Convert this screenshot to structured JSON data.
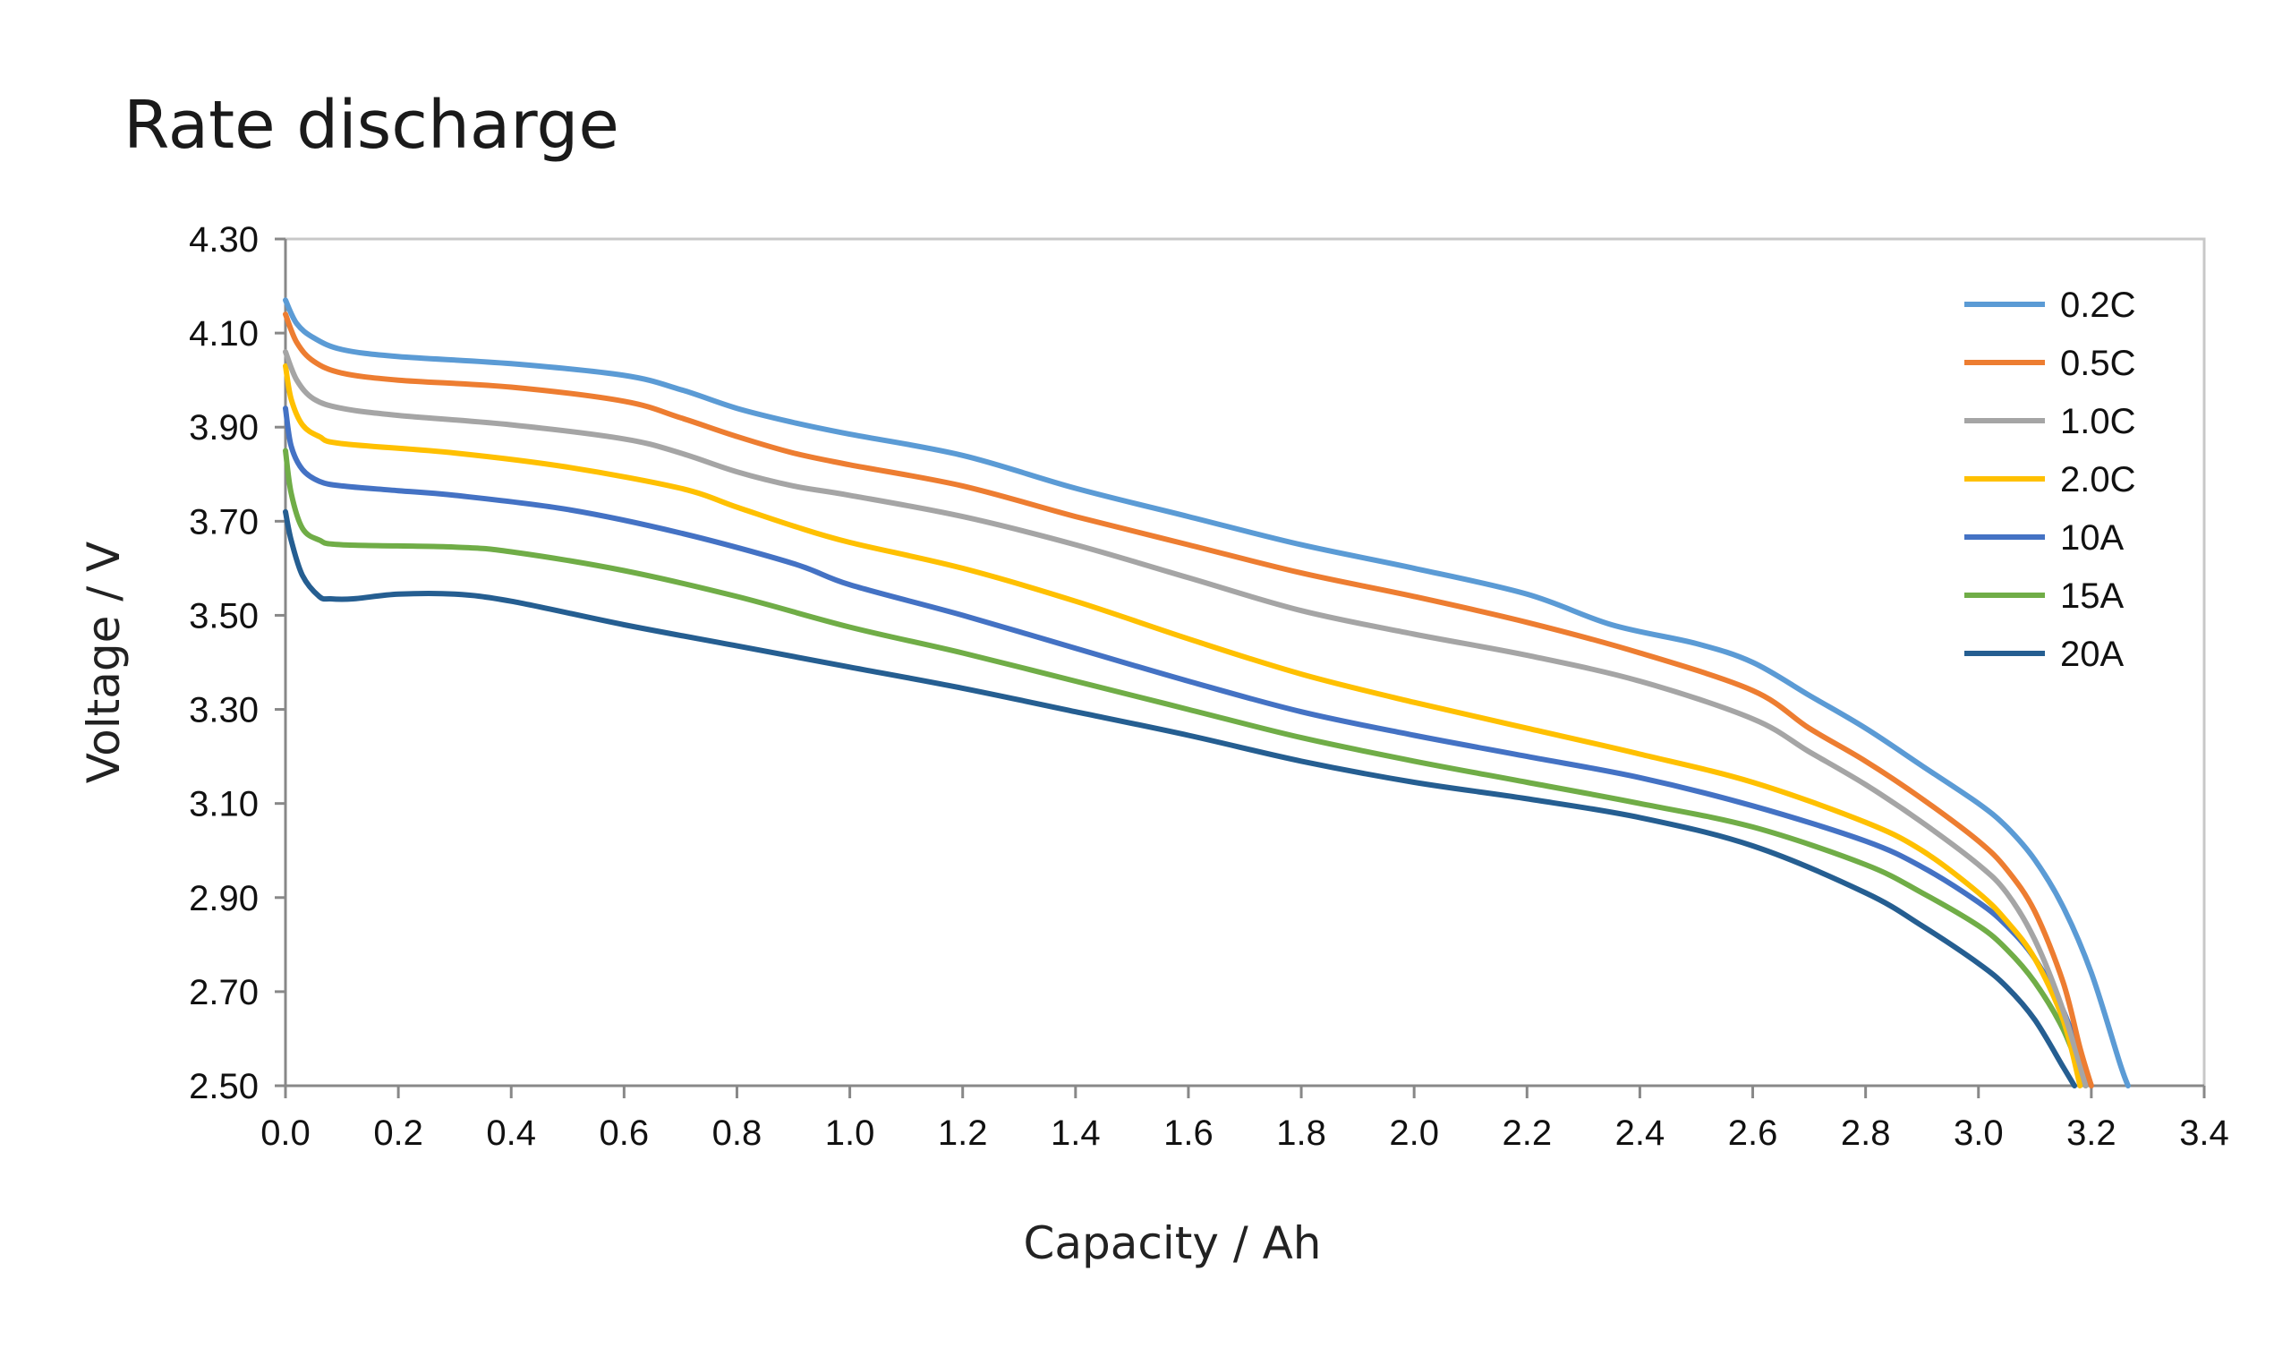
{
  "chart_data": {
    "type": "line",
    "title": "Rate discharge",
    "xlabel": "Capacity / Ah",
    "ylabel": "Voltage / V",
    "xlim": [
      0,
      3.4
    ],
    "ylim": [
      2.5,
      4.3
    ],
    "x_ticks": [
      "0.0",
      "0.2",
      "0.4",
      "0.6",
      "0.8",
      "1.0",
      "1.2",
      "1.4",
      "1.6",
      "1.8",
      "2.0",
      "2.2",
      "2.4",
      "2.6",
      "2.8",
      "3.0",
      "3.2",
      "3.4"
    ],
    "y_ticks": [
      "4.30",
      "4.10",
      "3.90",
      "3.70",
      "3.50",
      "3.30",
      "3.10",
      "2.90",
      "2.70",
      "2.50"
    ],
    "grid": false,
    "legend_position": "top-right",
    "series": [
      {
        "name": "0.2C",
        "color": "#5b9bd5",
        "points": [
          [
            0,
            4.17
          ],
          [
            0.02,
            4.12
          ],
          [
            0.05,
            4.09
          ],
          [
            0.1,
            4.065
          ],
          [
            0.2,
            4.05
          ],
          [
            0.4,
            4.035
          ],
          [
            0.6,
            4.01
          ],
          [
            0.7,
            3.98
          ],
          [
            0.8,
            3.94
          ],
          [
            0.9,
            3.91
          ],
          [
            1.0,
            3.885
          ],
          [
            1.2,
            3.84
          ],
          [
            1.4,
            3.77
          ],
          [
            1.6,
            3.71
          ],
          [
            1.8,
            3.65
          ],
          [
            2.0,
            3.6
          ],
          [
            2.2,
            3.545
          ],
          [
            2.35,
            3.48
          ],
          [
            2.5,
            3.44
          ],
          [
            2.6,
            3.4
          ],
          [
            2.7,
            3.33
          ],
          [
            2.8,
            3.26
          ],
          [
            2.9,
            3.18
          ],
          [
            3.0,
            3.1
          ],
          [
            3.05,
            3.05
          ],
          [
            3.1,
            2.98
          ],
          [
            3.15,
            2.88
          ],
          [
            3.2,
            2.74
          ],
          [
            3.25,
            2.55
          ],
          [
            3.265,
            2.5
          ]
        ]
      },
      {
        "name": "0.5C",
        "color": "#ed7d31",
        "points": [
          [
            0,
            4.14
          ],
          [
            0.02,
            4.08
          ],
          [
            0.05,
            4.04
          ],
          [
            0.1,
            4.015
          ],
          [
            0.2,
            4.0
          ],
          [
            0.4,
            3.985
          ],
          [
            0.6,
            3.955
          ],
          [
            0.7,
            3.92
          ],
          [
            0.8,
            3.88
          ],
          [
            0.9,
            3.845
          ],
          [
            1.0,
            3.82
          ],
          [
            1.2,
            3.775
          ],
          [
            1.4,
            3.71
          ],
          [
            1.6,
            3.65
          ],
          [
            1.8,
            3.59
          ],
          [
            2.0,
            3.54
          ],
          [
            2.2,
            3.485
          ],
          [
            2.4,
            3.42
          ],
          [
            2.6,
            3.34
          ],
          [
            2.7,
            3.26
          ],
          [
            2.8,
            3.19
          ],
          [
            2.9,
            3.11
          ],
          [
            3.0,
            3.02
          ],
          [
            3.05,
            2.96
          ],
          [
            3.1,
            2.87
          ],
          [
            3.15,
            2.72
          ],
          [
            3.18,
            2.58
          ],
          [
            3.2,
            2.5
          ]
        ]
      },
      {
        "name": "1.0C",
        "color": "#a5a5a5",
        "points": [
          [
            0,
            4.06
          ],
          [
            0.02,
            4.0
          ],
          [
            0.05,
            3.96
          ],
          [
            0.1,
            3.94
          ],
          [
            0.2,
            3.925
          ],
          [
            0.4,
            3.905
          ],
          [
            0.6,
            3.875
          ],
          [
            0.7,
            3.845
          ],
          [
            0.8,
            3.805
          ],
          [
            0.9,
            3.775
          ],
          [
            1.0,
            3.755
          ],
          [
            1.2,
            3.71
          ],
          [
            1.4,
            3.65
          ],
          [
            1.6,
            3.58
          ],
          [
            1.8,
            3.51
          ],
          [
            2.0,
            3.46
          ],
          [
            2.2,
            3.415
          ],
          [
            2.4,
            3.36
          ],
          [
            2.6,
            3.28
          ],
          [
            2.7,
            3.21
          ],
          [
            2.8,
            3.14
          ],
          [
            2.9,
            3.06
          ],
          [
            3.0,
            2.97
          ],
          [
            3.05,
            2.91
          ],
          [
            3.1,
            2.81
          ],
          [
            3.15,
            2.66
          ],
          [
            3.19,
            2.5
          ]
        ]
      },
      {
        "name": "2.0C",
        "color": "#ffc000",
        "points": [
          [
            0,
            4.03
          ],
          [
            0.01,
            3.96
          ],
          [
            0.03,
            3.905
          ],
          [
            0.06,
            3.88
          ],
          [
            0.1,
            3.865
          ],
          [
            0.3,
            3.845
          ],
          [
            0.5,
            3.815
          ],
          [
            0.7,
            3.77
          ],
          [
            0.8,
            3.73
          ],
          [
            0.9,
            3.69
          ],
          [
            1.0,
            3.655
          ],
          [
            1.2,
            3.6
          ],
          [
            1.4,
            3.53
          ],
          [
            1.6,
            3.45
          ],
          [
            1.8,
            3.375
          ],
          [
            2.0,
            3.315
          ],
          [
            2.2,
            3.26
          ],
          [
            2.4,
            3.205
          ],
          [
            2.6,
            3.145
          ],
          [
            2.8,
            3.06
          ],
          [
            2.9,
            3.0
          ],
          [
            3.0,
            2.91
          ],
          [
            3.05,
            2.85
          ],
          [
            3.1,
            2.77
          ],
          [
            3.15,
            2.64
          ],
          [
            3.18,
            2.5
          ]
        ]
      },
      {
        "name": "10A",
        "color": "#4472c4",
        "points": [
          [
            0,
            3.94
          ],
          [
            0.01,
            3.86
          ],
          [
            0.03,
            3.81
          ],
          [
            0.06,
            3.785
          ],
          [
            0.1,
            3.775
          ],
          [
            0.2,
            3.765
          ],
          [
            0.3,
            3.755
          ],
          [
            0.5,
            3.725
          ],
          [
            0.7,
            3.675
          ],
          [
            0.9,
            3.61
          ],
          [
            1.0,
            3.565
          ],
          [
            1.2,
            3.5
          ],
          [
            1.4,
            3.43
          ],
          [
            1.6,
            3.36
          ],
          [
            1.8,
            3.295
          ],
          [
            2.0,
            3.245
          ],
          [
            2.2,
            3.2
          ],
          [
            2.4,
            3.155
          ],
          [
            2.6,
            3.095
          ],
          [
            2.8,
            3.02
          ],
          [
            2.9,
            2.965
          ],
          [
            3.0,
            2.89
          ],
          [
            3.05,
            2.84
          ],
          [
            3.1,
            2.77
          ],
          [
            3.15,
            2.66
          ],
          [
            3.2,
            2.5
          ]
        ]
      },
      {
        "name": "15A",
        "color": "#70ad47",
        "points": [
          [
            0,
            3.85
          ],
          [
            0.01,
            3.76
          ],
          [
            0.03,
            3.685
          ],
          [
            0.06,
            3.66
          ],
          [
            0.1,
            3.65
          ],
          [
            0.3,
            3.645
          ],
          [
            0.4,
            3.635
          ],
          [
            0.6,
            3.595
          ],
          [
            0.8,
            3.54
          ],
          [
            1.0,
            3.475
          ],
          [
            1.2,
            3.42
          ],
          [
            1.4,
            3.36
          ],
          [
            1.6,
            3.3
          ],
          [
            1.8,
            3.24
          ],
          [
            2.0,
            3.19
          ],
          [
            2.2,
            3.145
          ],
          [
            2.4,
            3.1
          ],
          [
            2.6,
            3.05
          ],
          [
            2.8,
            2.97
          ],
          [
            2.9,
            2.91
          ],
          [
            3.0,
            2.84
          ],
          [
            3.05,
            2.79
          ],
          [
            3.1,
            2.72
          ],
          [
            3.15,
            2.62
          ],
          [
            3.19,
            2.5
          ]
        ]
      },
      {
        "name": "20A",
        "color": "#255e91",
        "points": [
          [
            0,
            3.72
          ],
          [
            0.01,
            3.66
          ],
          [
            0.03,
            3.585
          ],
          [
            0.06,
            3.54
          ],
          [
            0.08,
            3.535
          ],
          [
            0.12,
            3.535
          ],
          [
            0.2,
            3.545
          ],
          [
            0.3,
            3.545
          ],
          [
            0.4,
            3.53
          ],
          [
            0.6,
            3.48
          ],
          [
            0.8,
            3.435
          ],
          [
            1.0,
            3.39
          ],
          [
            1.2,
            3.345
          ],
          [
            1.4,
            3.295
          ],
          [
            1.6,
            3.245
          ],
          [
            1.8,
            3.19
          ],
          [
            2.0,
            3.145
          ],
          [
            2.2,
            3.11
          ],
          [
            2.4,
            3.07
          ],
          [
            2.6,
            3.01
          ],
          [
            2.8,
            2.91
          ],
          [
            2.9,
            2.84
          ],
          [
            3.0,
            2.76
          ],
          [
            3.05,
            2.71
          ],
          [
            3.1,
            2.64
          ],
          [
            3.15,
            2.54
          ],
          [
            3.17,
            2.5
          ]
        ]
      }
    ]
  }
}
